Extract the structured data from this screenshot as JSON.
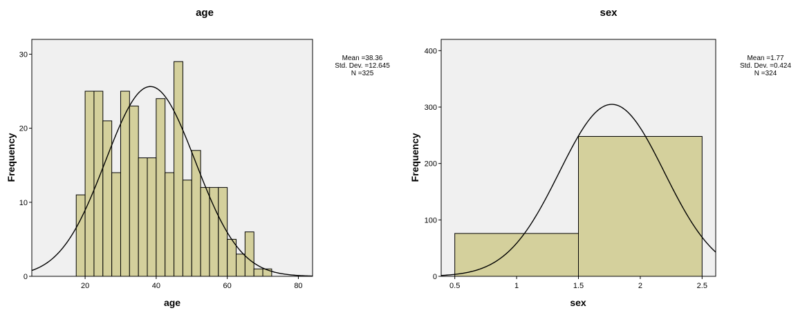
{
  "chart_data": [
    {
      "type": "histogram",
      "title": "age",
      "xlabel": "age",
      "ylabel": "Frequency",
      "xlim": [
        5,
        84
      ],
      "ylim": [
        0,
        32
      ],
      "xticks": [
        20,
        40,
        60,
        80
      ],
      "yticks": [
        0,
        10,
        20,
        30
      ],
      "bin_width": 2.5,
      "bins_start": [
        17.5,
        20,
        22.5,
        25,
        27.5,
        30,
        32.5,
        35,
        37.5,
        40,
        42.5,
        45,
        47.5,
        50,
        52.5,
        55,
        57.5,
        60,
        62.5,
        65,
        67.5,
        70
      ],
      "values": [
        11,
        25,
        25,
        21,
        14,
        25,
        23,
        16,
        16,
        24,
        14,
        29,
        13,
        17,
        12,
        12,
        12,
        5,
        3,
        6,
        1,
        1
      ],
      "normal_curve": {
        "mean": 38.36,
        "std": 12.645,
        "n": 325
      },
      "stats_text": [
        "Mean =38.36",
        "Std. Dev. =12.645",
        "N =325"
      ],
      "bar_color": "#d4d09c",
      "plot_bg": "#f0f0f0",
      "grid": false
    },
    {
      "type": "histogram",
      "title": "sex",
      "xlabel": "sex",
      "ylabel": "Frequency",
      "xlim": [
        0.39,
        2.61
      ],
      "ylim": [
        0,
        420
      ],
      "xticks": [
        0.5,
        1,
        1.5,
        2,
        2.5
      ],
      "yticks": [
        0,
        100,
        200,
        300,
        400
      ],
      "bin_width": 1,
      "bins_start": [
        0.5,
        1.5
      ],
      "values": [
        76,
        248
      ],
      "normal_curve": {
        "mean": 1.77,
        "std": 0.424,
        "n": 324
      },
      "stats_text": [
        "Mean =1.77",
        "Std. Dev. =0.424",
        "N =324"
      ],
      "bar_color": "#d4d09c",
      "plot_bg": "#f0f0f0",
      "grid": false
    }
  ]
}
